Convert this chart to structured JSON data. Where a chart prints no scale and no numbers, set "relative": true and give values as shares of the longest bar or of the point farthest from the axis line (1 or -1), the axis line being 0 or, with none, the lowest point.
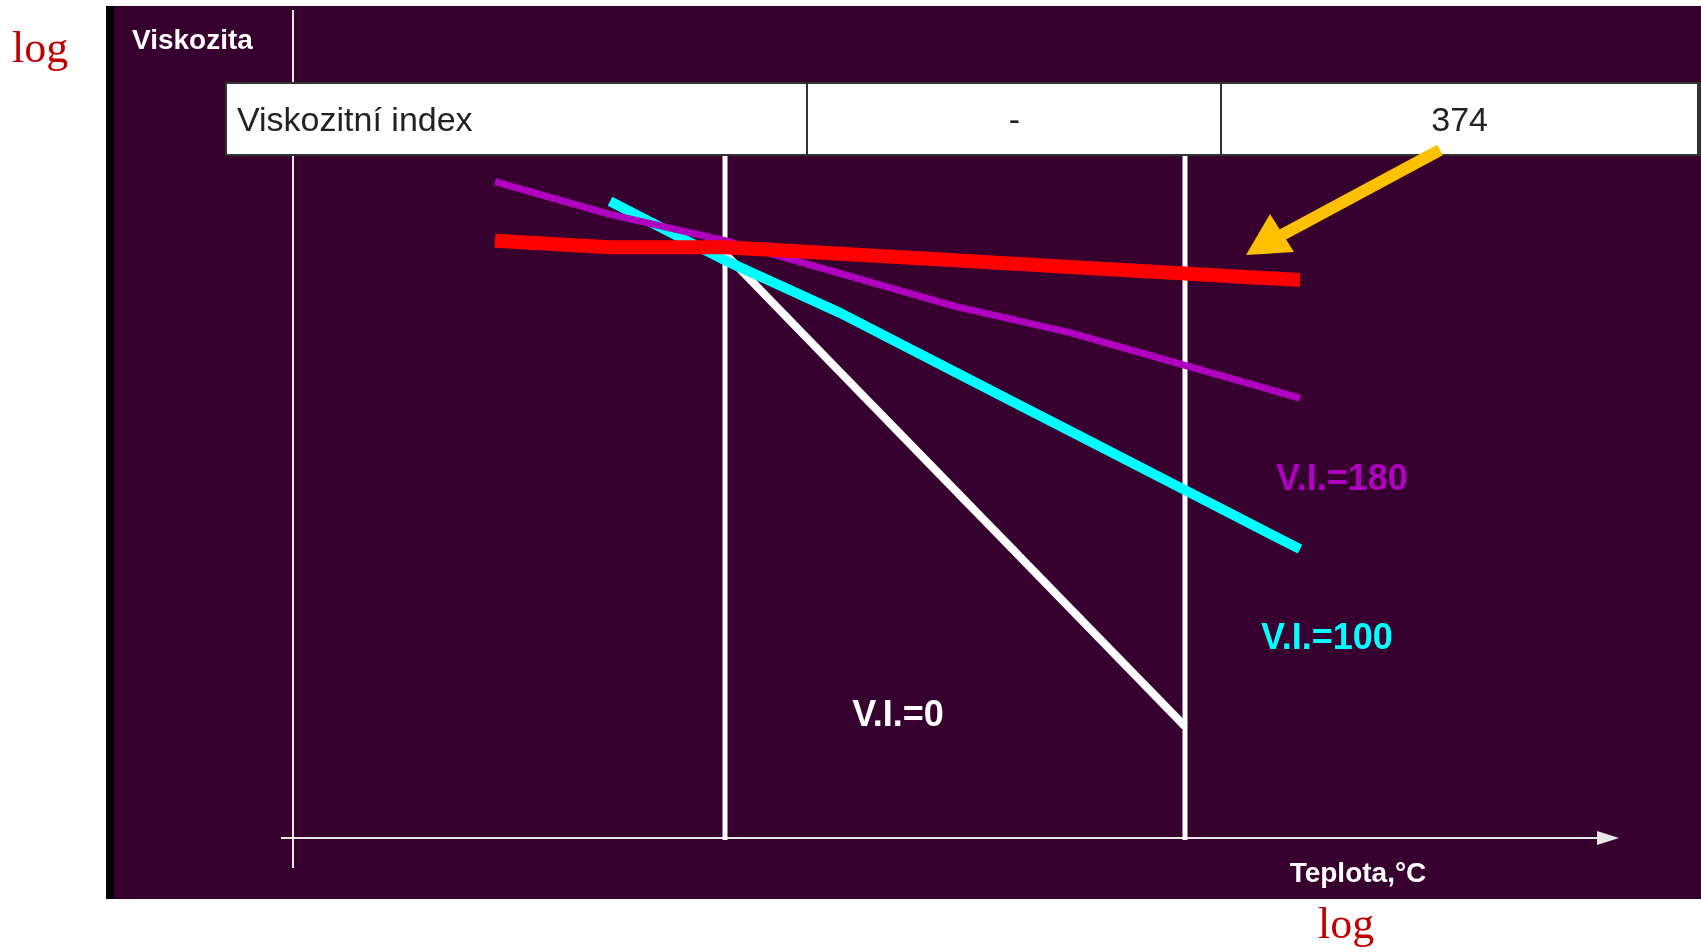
{
  "chart_data": {
    "type": "line",
    "relative": true,
    "xlabel": "Teplota,°C",
    "categories": [
      null,
      null,
      null,
      null,
      null,
      null,
      null,
      null
    ],
    "legend": false,
    "marker": "none",
    "series": [
      {
        "color": "#ff0000",
        "values": [
          0.91,
          0.9,
          0.9,
          0.89,
          0.88,
          0.87,
          0.86,
          0.85
        ]
      },
      {
        "name": "V.I.=180",
        "color": "#b000c0",
        "values": [
          1,
          0.95,
          0.91,
          0.86,
          0.81,
          0.77,
          0.72,
          0.67
        ]
      },
      {
        "name": "V.I.=100",
        "color": "#00ffff",
        "values": [
          null,
          0.97,
          0.88,
          0.8,
          0.71,
          0.62,
          0.53,
          0.44
        ]
      },
      {
        "name": "V.I.=0",
        "color": "#ffffff",
        "values": [
          null,
          null,
          0.89,
          0.71,
          0.53,
          0.35,
          0.17,
          null
        ]
      }
    ],
    "annotations": [
      "Viskozitní index",
      "-",
      "374",
      "log",
      "log",
      "Viskozita"
    ]
  }
}
